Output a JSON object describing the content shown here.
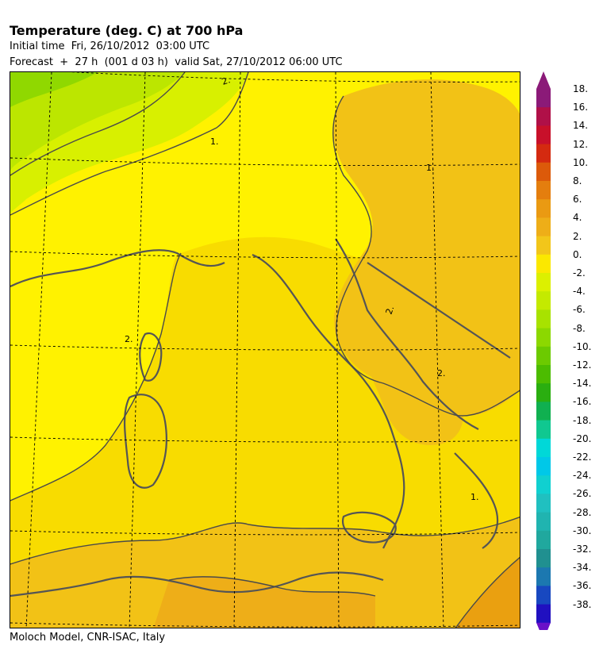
{
  "header": {
    "title": "Temperature (deg. C) at 700 hPa",
    "initial_time": "Initial time  Fri, 26/10/2012  03:00 UTC",
    "forecast": "Forecast  +  27 h  (001 d 03 h)  valid Sat, 27/10/2012 06:00 UTC"
  },
  "footer": "Moloch Model, CNR-ISAC, Italy",
  "map": {
    "contour_labels": [
      "2.",
      "1.",
      "1.",
      "2.",
      "2.",
      "2.",
      "1."
    ]
  },
  "legend": {
    "labels": [
      "18.",
      "16.",
      "14.",
      "12.",
      "10.",
      "8.",
      "6.",
      "4.",
      "2.",
      "0.",
      "-2.",
      "-4.",
      "-6.",
      "-8.",
      "-10.",
      "-12.",
      "-14.",
      "-16.",
      "-18.",
      "-20.",
      "-22.",
      "-24.",
      "-26.",
      "-28.",
      "-30.",
      "-32.",
      "-34.",
      "-36.",
      "-38."
    ],
    "colors": [
      "#8b1a78",
      "#b01048",
      "#c8102a",
      "#d42a10",
      "#dc5a0a",
      "#e47e0e",
      "#ea9a12",
      "#eeae18",
      "#f2c61a",
      "#fbe800",
      "#dcf000",
      "#c4ea00",
      "#a8e200",
      "#8cd800",
      "#6cca00",
      "#4cbc00",
      "#2aae10",
      "#10b050",
      "#10c890",
      "#00d8d8",
      "#00c8e8",
      "#10d0d0",
      "#20c0c0",
      "#20b4b0",
      "#20a89e",
      "#209090",
      "#1c78b0",
      "#1848c0",
      "#2010c0"
    ],
    "arrow_top_color": "#8b1a78",
    "arrow_bottom_color": "#6a10c8"
  }
}
